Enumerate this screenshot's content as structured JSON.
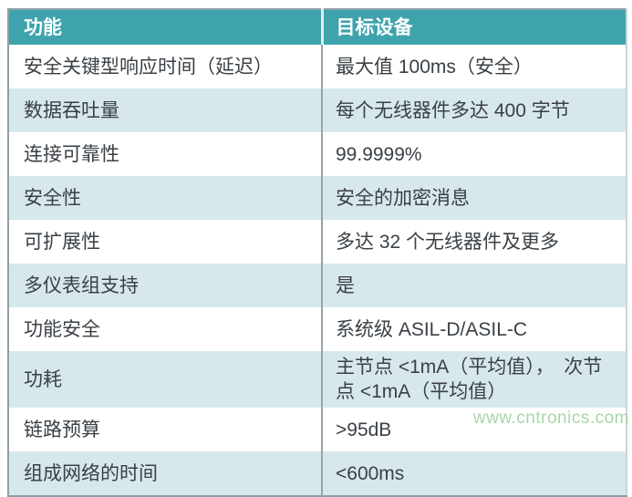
{
  "colors": {
    "header_bg": "#3EA3AC",
    "header_text": "#FFFFFF",
    "row_bg": "#FFFFFF",
    "row_alt_bg": "#D7E8EC",
    "border": "#8FA0A8",
    "divider": "#93A4AC",
    "text": "#3A4045",
    "watermark": "#A6D7A8"
  },
  "watermark": "www.cntronics.com",
  "table": {
    "headers": [
      "功能",
      "目标设备"
    ],
    "rows": [
      {
        "feature": "安全关键型响应时间（延迟）",
        "target": "最大值 100ms（安全）"
      },
      {
        "feature": "数据吞吐量",
        "target": "每个无线器件多达 400 字节"
      },
      {
        "feature": "连接可靠性",
        "target": "99.9999%"
      },
      {
        "feature": "安全性",
        "target": "安全的加密消息"
      },
      {
        "feature": "可扩展性",
        "target": "多达 32 个无线器件及更多"
      },
      {
        "feature": "多仪表组支持",
        "target": "是"
      },
      {
        "feature": "功能安全",
        "target": "系统级 ASIL-D/ASIL-C"
      },
      {
        "feature": "功耗",
        "target": "主节点 <1mA（平均值），　次节点 <1mA（平均值）"
      },
      {
        "feature": "链路预算",
        "target": ">95dB"
      },
      {
        "feature": "组成网络的时间",
        "target": "<600ms"
      }
    ]
  }
}
